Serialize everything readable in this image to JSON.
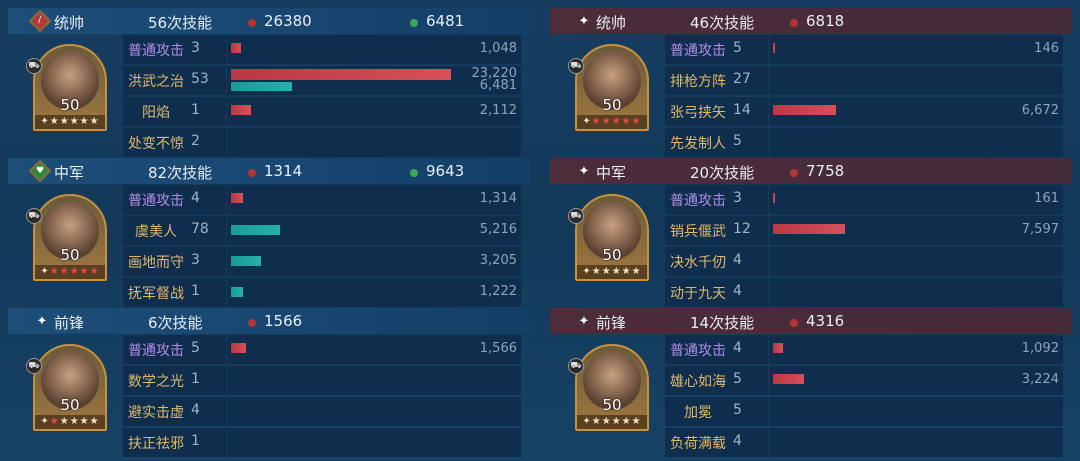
{
  "colors": {
    "damage": "#b93844",
    "heal": "#1a9a9a",
    "ally_header": "#1d4e78",
    "enemy_header": "#4e2c3a",
    "basic_attack": "#b28ce8",
    "skill": "#e0b86a"
  },
  "sides": [
    {
      "id": "ally",
      "generals": [
        {
          "role": "统帅",
          "role_icon": "sword-diamond-icon",
          "skill_count": "56次技能",
          "damage": "26380",
          "heal": "6481",
          "level": "50",
          "red_stars": 0,
          "skills": [
            {
              "name": "普通攻击",
              "basic": true,
              "count": "3",
              "damage": 1048,
              "damage_label": "1,048"
            },
            {
              "name": "洪武之治",
              "count": "53",
              "damage": 23220,
              "damage_label": "23,220",
              "heal": 6481,
              "heal_label": "6,481"
            },
            {
              "name": "阳焰",
              "count": "1",
              "damage": 2112,
              "damage_label": "2,112"
            },
            {
              "name": "处变不惊",
              "count": "2"
            }
          ]
        },
        {
          "role": "中军",
          "role_icon": "heart-diamond-icon",
          "skill_count": "82次技能",
          "damage": "1314",
          "heal": "9643",
          "level": "50",
          "red_stars": 5,
          "skills": [
            {
              "name": "普通攻击",
              "basic": true,
              "count": "4",
              "damage": 1314,
              "damage_label": "1,314"
            },
            {
              "name": "虞美人",
              "count": "78",
              "heal": 5216,
              "heal_label": "5,216"
            },
            {
              "name": "画地而守",
              "count": "3",
              "heal": 3205,
              "heal_label": "3,205"
            },
            {
              "name": "抚军督战",
              "count": "1",
              "heal": 1222,
              "heal_label": "1,222"
            }
          ]
        },
        {
          "role": "前锋",
          "role_icon": "sparkle-icon",
          "skill_count": "6次技能",
          "damage": "1566",
          "level": "50",
          "red_stars": 1,
          "skills": [
            {
              "name": "普通攻击",
              "basic": true,
              "count": "5",
              "damage": 1566,
              "damage_label": "1,566"
            },
            {
              "name": "数学之光",
              "count": "1"
            },
            {
              "name": "避实击虚",
              "count": "4"
            },
            {
              "name": "扶正祛邪",
              "count": "1"
            }
          ]
        }
      ]
    },
    {
      "id": "enemy",
      "generals": [
        {
          "role": "统帅",
          "role_icon": "sparkle-icon",
          "skill_count": "46次技能",
          "damage": "6818",
          "level": "50",
          "red_stars": 5,
          "skills": [
            {
              "name": "普通攻击",
              "basic": true,
              "count": "5",
              "damage": 146,
              "damage_label": "146"
            },
            {
              "name": "排枪方阵",
              "count": "27"
            },
            {
              "name": "张弓挟矢",
              "count": "14",
              "damage": 6672,
              "damage_label": "6,672"
            },
            {
              "name": "先发制人",
              "count": "5"
            }
          ]
        },
        {
          "role": "中军",
          "role_icon": "sparkle-icon",
          "skill_count": "20次技能",
          "damage": "7758",
          "level": "50",
          "red_stars": 0,
          "skills": [
            {
              "name": "普通攻击",
              "basic": true,
              "count": "3",
              "damage": 161,
              "damage_label": "161"
            },
            {
              "name": "销兵偃武",
              "count": "12",
              "damage": 7597,
              "damage_label": "7,597"
            },
            {
              "name": "决水千仞",
              "count": "4"
            },
            {
              "name": "动于九天",
              "count": "4"
            }
          ]
        },
        {
          "role": "前锋",
          "role_icon": "sparkle-icon",
          "skill_count": "14次技能",
          "damage": "4316",
          "level": "50",
          "red_stars": 0,
          "skills": [
            {
              "name": "普通攻击",
              "basic": true,
              "count": "4",
              "damage": 1092,
              "damage_label": "1,092"
            },
            {
              "name": "雄心如海",
              "count": "5",
              "damage": 3224,
              "damage_label": "3,224"
            },
            {
              "name": "加冕",
              "count": "5"
            },
            {
              "name": "负荷满载",
              "count": "4"
            }
          ]
        }
      ]
    }
  ]
}
